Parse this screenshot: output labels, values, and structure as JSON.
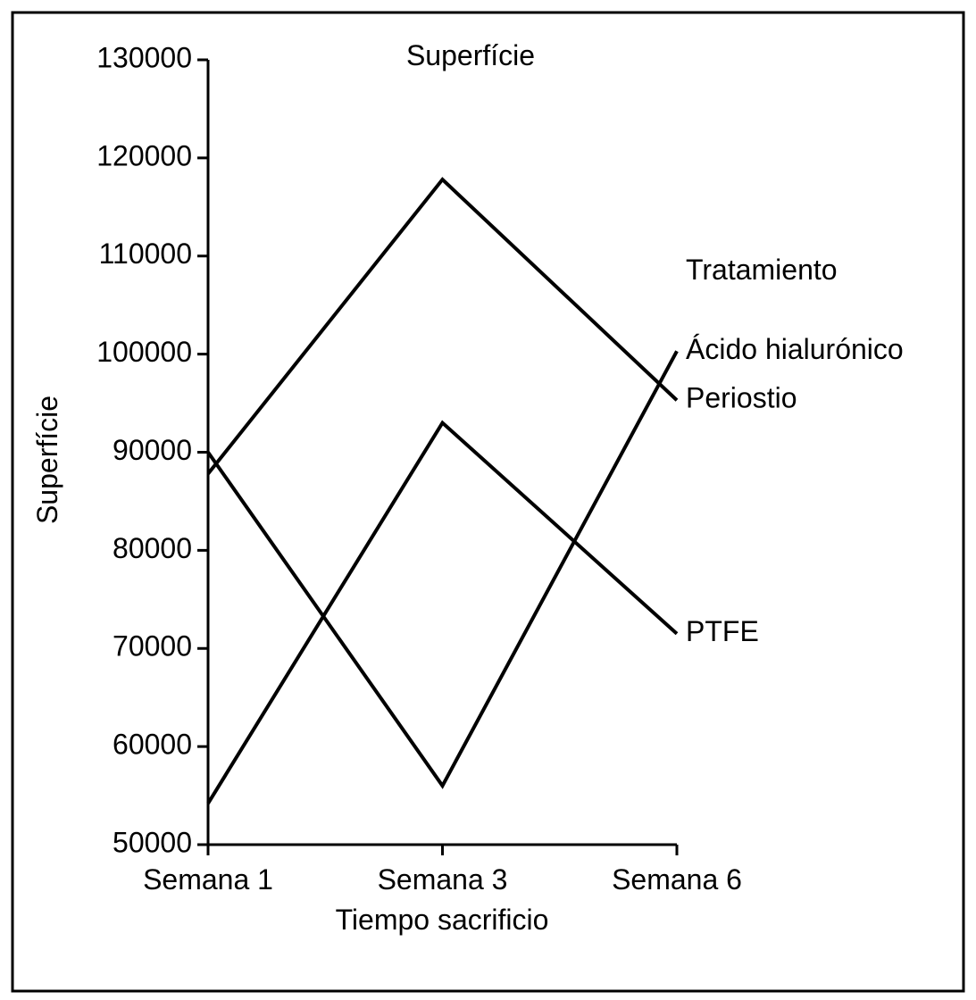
{
  "chart_data": {
    "type": "line",
    "title": "Superfície",
    "xlabel": "Tiempo sacrificio",
    "ylabel": "Superfície",
    "categories": [
      "Semana 1",
      "Semana 3",
      "Semana 6"
    ],
    "ylim": [
      50000,
      130000
    ],
    "yticks": [
      "50000",
      "60000",
      "70000",
      "80000",
      "90000",
      "100000",
      "110000",
      "120000",
      "130000"
    ],
    "legend_title": "Tratamiento",
    "grid": false,
    "series": [
      {
        "name": "Ácido hialurónico",
        "values": [
          90000,
          56000,
          100300
        ]
      },
      {
        "name": "Periostio",
        "values": [
          87800,
          117800,
          95300
        ]
      },
      {
        "name": "PTFE",
        "values": [
          54200,
          93000,
          71500
        ]
      }
    ]
  }
}
